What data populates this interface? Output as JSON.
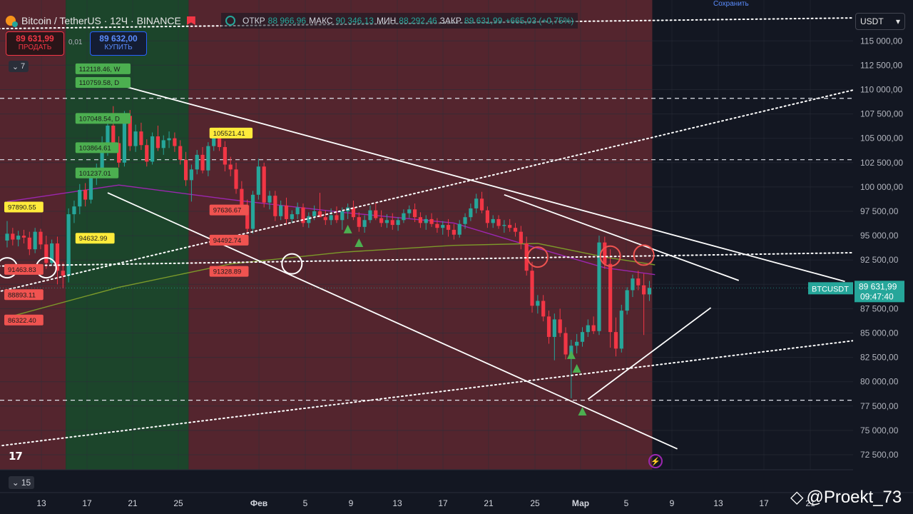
{
  "header": {
    "symbol_title": "Bitcoin / TetherUS · 12Ч · BINANCE",
    "ohlc": [
      {
        "label": "ОТКР",
        "value": "88 966,96"
      },
      {
        "label": "МАКС",
        "value": "90 346,13"
      },
      {
        "label": "МИН",
        "value": "88 292,46"
      },
      {
        "label": "ЗАКР",
        "value": "89 631,99"
      },
      {
        "label": "",
        "value": "+665,03 (+0,75%)"
      }
    ],
    "top_edge_text": "Сохранить"
  },
  "trade": {
    "sell_price": "89 631,99",
    "sell_label": "ПРОДАТЬ",
    "spread": "0,01",
    "buy_price": "89 632,00",
    "buy_label": "КУПИТЬ"
  },
  "indicators_count": "7",
  "currency_select": "USDT",
  "interval_count": "15",
  "watermark": "@Proekt_73",
  "colors": {
    "background": "#131722",
    "up": "#26a69a",
    "down": "#f23645",
    "bear_zone": "#5c2730",
    "bull_zone": "#1e4a2c",
    "ma_short": "#9c27b0",
    "ma_long": "#7c9a2a",
    "label_green": "#4caf50",
    "label_yellow": "#ffeb3b",
    "label_red": "#f05350"
  },
  "chart_data": {
    "type": "candlestick",
    "title": "Bitcoin / TetherUS · 12Ч · BINANCE",
    "timeframe": "12Ч",
    "ylim": [
      71000,
      117000
    ],
    "y_ticks": [
      72500,
      75000,
      77500,
      80000,
      82500,
      85000,
      87500,
      90000,
      92500,
      95000,
      97500,
      100000,
      102500,
      105000,
      107500,
      110000,
      112500,
      115000
    ],
    "y_tick_labels": [
      "72 500,00",
      "75 000,00",
      "77 500,00",
      "80 000,00",
      "82 500,00",
      "85 000,00",
      "87 500,00",
      "90 000,00",
      "92 500,00",
      "95 000,00",
      "97 500,00",
      "100 000,00",
      "102 500,00",
      "105 000,00",
      "107 500,00",
      "110 000,00",
      "112 500,00",
      "115 000,00"
    ],
    "x_labels": [
      "13",
      "17",
      "21",
      "25",
      "Фев",
      "5",
      "9",
      "13",
      "17",
      "21",
      "25",
      "Мар",
      "5",
      "9",
      "13",
      "17",
      "21"
    ],
    "last_price": 89631.99,
    "last_price_label": "89 631,99",
    "symbol_tag": "BTCUSDT",
    "countdown": "09:47:40",
    "candles": [
      [
        94500,
        96500,
        93800,
        95200
      ],
      [
        95200,
        95800,
        94000,
        94600
      ],
      [
        94600,
        95500,
        93900,
        95000
      ],
      [
        95000,
        95600,
        94200,
        94800
      ],
      [
        94800,
        95400,
        93000,
        93600
      ],
      [
        93600,
        95800,
        93200,
        95400
      ],
      [
        95400,
        95700,
        93600,
        94100
      ],
      [
        94100,
        95000,
        91600,
        92200
      ],
      [
        92200,
        94600,
        91900,
        94200
      ],
      [
        94200,
        94900,
        90000,
        91400
      ],
      [
        91400,
        92200,
        89600,
        90900
      ],
      [
        90900,
        97800,
        90200,
        97200
      ],
      [
        97200,
        98600,
        96300,
        98000
      ],
      [
        98000,
        100300,
        97200,
        99700
      ],
      [
        99700,
        100400,
        98000,
        98700
      ],
      [
        98700,
        101800,
        98300,
        101300
      ],
      [
        101300,
        102400,
        100200,
        101800
      ],
      [
        101800,
        105200,
        101300,
        104200
      ],
      [
        104200,
        107000,
        103200,
        106300
      ],
      [
        106300,
        108300,
        104000,
        104500
      ],
      [
        104500,
        105200,
        102000,
        102500
      ],
      [
        102500,
        107800,
        102100,
        107300
      ],
      [
        107300,
        107900,
        103700,
        104200
      ],
      [
        104200,
        106400,
        103600,
        105700
      ],
      [
        105700,
        106600,
        103800,
        104300
      ],
      [
        104300,
        104900,
        102100,
        102600
      ],
      [
        102600,
        105600,
        102300,
        105200
      ],
      [
        105200,
        106300,
        103700,
        104000
      ],
      [
        104000,
        105300,
        103300,
        104800
      ],
      [
        104800,
        105700,
        104000,
        105000
      ],
      [
        105000,
        105600,
        103600,
        104200
      ],
      [
        104200,
        104800,
        102300,
        102800
      ],
      [
        102800,
        103600,
        100100,
        100700
      ],
      [
        100700,
        102300,
        98500,
        101800
      ],
      [
        101800,
        103800,
        101300,
        103300
      ],
      [
        103300,
        104100,
        101400,
        101700
      ],
      [
        101700,
        104600,
        101100,
        104200
      ],
      [
        104200,
        105900,
        103700,
        105300
      ],
      [
        105300,
        106100,
        103700,
        104100
      ],
      [
        104100,
        104700,
        101600,
        102300
      ],
      [
        102300,
        103100,
        101100,
        101800
      ],
      [
        101800,
        102500,
        99300,
        99800
      ],
      [
        99800,
        100600,
        97600,
        98100
      ],
      [
        98100,
        98700,
        95200,
        95700
      ],
      [
        95700,
        99600,
        95200,
        99200
      ],
      [
        99200,
        102900,
        98700,
        102100
      ],
      [
        102100,
        102500,
        97900,
        98400
      ],
      [
        98400,
        99600,
        97700,
        99100
      ],
      [
        99100,
        99600,
        96500,
        97000
      ],
      [
        97000,
        98600,
        96600,
        98100
      ],
      [
        98100,
        98900,
        96100,
        96700
      ],
      [
        96700,
        97600,
        96300,
        97200
      ],
      [
        97200,
        98400,
        96700,
        97900
      ],
      [
        97900,
        98300,
        95900,
        96300
      ],
      [
        96300,
        97400,
        95800,
        97000
      ],
      [
        97000,
        98100,
        96600,
        97500
      ],
      [
        97500,
        99400,
        96900,
        96900
      ],
      [
        96900,
        97600,
        96100,
        96600
      ],
      [
        96600,
        97800,
        96100,
        97100
      ],
      [
        97100,
        98000,
        96300,
        96600
      ],
      [
        96600,
        97900,
        95600,
        97500
      ],
      [
        97500,
        98300,
        96700,
        97900
      ],
      [
        97900,
        98600,
        96600,
        96900
      ],
      [
        96900,
        97400,
        95400,
        95900
      ],
      [
        95900,
        97100,
        95300,
        96600
      ],
      [
        96600,
        98100,
        96300,
        97600
      ],
      [
        97600,
        98400,
        96600,
        96800
      ],
      [
        96800,
        97600,
        95900,
        96300
      ],
      [
        96300,
        97200,
        95800,
        96600
      ],
      [
        96600,
        97300,
        95600,
        96100
      ],
      [
        96100,
        96900,
        95500,
        96600
      ],
      [
        96600,
        97700,
        96300,
        97300
      ],
      [
        97300,
        98100,
        96800,
        97700
      ],
      [
        97700,
        98300,
        96400,
        96900
      ],
      [
        96900,
        97400,
        95800,
        96300
      ],
      [
        96300,
        97100,
        95600,
        96700
      ],
      [
        96700,
        97300,
        95900,
        96200
      ],
      [
        96200,
        96800,
        95300,
        95800
      ],
      [
        95800,
        96500,
        95100,
        96100
      ],
      [
        96100,
        96700,
        94900,
        95600
      ],
      [
        95600,
        96200,
        94600,
        95100
      ],
      [
        95100,
        96600,
        94800,
        96200
      ],
      [
        96200,
        97300,
        95700,
        96900
      ],
      [
        96900,
        98300,
        96500,
        97800
      ],
      [
        97800,
        99300,
        97300,
        98800
      ],
      [
        98800,
        99500,
        97300,
        97600
      ],
      [
        97600,
        98000,
        95800,
        96300
      ],
      [
        96300,
        97100,
        95800,
        96700
      ],
      [
        96700,
        97100,
        95700,
        96000
      ],
      [
        96000,
        96600,
        95300,
        96100
      ],
      [
        96100,
        96700,
        95400,
        95800
      ],
      [
        95800,
        96300,
        94900,
        95400
      ],
      [
        95400,
        96000,
        93600,
        94200
      ],
      [
        94200,
        94900,
        90900,
        91400
      ],
      [
        91400,
        92300,
        87100,
        87800
      ],
      [
        87800,
        88900,
        87000,
        88300
      ],
      [
        88300,
        88900,
        86200,
        86700
      ],
      [
        86700,
        87300,
        83900,
        84600
      ],
      [
        84600,
        87000,
        82200,
        86400
      ],
      [
        86400,
        87500,
        84600,
        85000
      ],
      [
        85000,
        85600,
        82300,
        82800
      ],
      [
        82800,
        84300,
        78300,
        83700
      ],
      [
        83700,
        84900,
        82900,
        84100
      ],
      [
        84100,
        85600,
        83600,
        85100
      ],
      [
        85100,
        86400,
        84600,
        85800
      ],
      [
        85800,
        86700,
        84900,
        85200
      ],
      [
        85200,
        95000,
        84800,
        94300
      ],
      [
        94300,
        94900,
        91600,
        92100
      ],
      [
        92100,
        93600,
        83500,
        85100
      ],
      [
        85100,
        86600,
        82600,
        83400
      ],
      [
        83400,
        87900,
        83000,
        87300
      ],
      [
        87300,
        89700,
        86900,
        89400
      ],
      [
        89400,
        91000,
        88700,
        90600
      ],
      [
        90600,
        91400,
        89400,
        89900
      ],
      [
        89900,
        91100,
        84800,
        88966
      ],
      [
        88966,
        90346,
        88292,
        89631
      ]
    ],
    "ma_short": [
      [
        0,
        98500
      ],
      [
        20,
        100200
      ],
      [
        40,
        98700
      ],
      [
        60,
        97400
      ],
      [
        80,
        96300
      ],
      [
        95,
        93700
      ],
      [
        107,
        91700
      ],
      [
        116,
        91000
      ]
    ],
    "ma_long": [
      [
        0,
        86600
      ],
      [
        20,
        89700
      ],
      [
        40,
        92100
      ],
      [
        60,
        93300
      ],
      [
        80,
        94000
      ],
      [
        95,
        94200
      ],
      [
        107,
        92800
      ],
      [
        116,
        92000
      ]
    ],
    "trendlines": [
      {
        "p1": [
          18,
          110800
        ],
        "p2": [
          150,
          90300
        ],
        "style": "solid"
      },
      {
        "p1": [
          18,
          99400
        ],
        "p2": [
          120,
          73100
        ],
        "style": "solid"
      },
      {
        "p1": [
          89,
          99200
        ],
        "p2": [
          131,
          90400
        ],
        "style": "solid"
      },
      {
        "p1": [
          104,
          78200
        ],
        "p2": [
          126,
          87600
        ],
        "style": "solid"
      },
      {
        "p1": [
          -10,
          72800
        ],
        "p2": [
          157,
          84600
        ],
        "style": "dotted"
      },
      {
        "p1": [
          -10,
          88100
        ],
        "p2": [
          157,
          110700
        ],
        "style": "dotted"
      },
      {
        "p1": [
          -10,
          91800
        ],
        "p2": [
          157,
          93300
        ],
        "style": "dotted"
      },
      {
        "p1": [
          -10,
          116200
        ],
        "p2": [
          157,
          117400
        ],
        "style": "dotted"
      }
    ],
    "horizontal_levels": [
      109100,
      102800,
      78100
    ],
    "zones": [
      {
        "from": 0,
        "to": 11,
        "type": "bear"
      },
      {
        "from": 11,
        "to": 33,
        "type": "bull"
      },
      {
        "from": 33,
        "to": 116,
        "type": "bear"
      }
    ],
    "circles": [
      {
        "candle": 0,
        "price": 91700,
        "color": "white"
      },
      {
        "candle": 7,
        "price": 91700,
        "color": "white"
      },
      {
        "candle": 51,
        "price": 92100,
        "color": "white"
      },
      {
        "candle": 95,
        "price": 92800,
        "color": "red"
      },
      {
        "candle": 108,
        "price": 92900,
        "color": "red"
      },
      {
        "candle": 114,
        "price": 93000,
        "color": "red"
      }
    ],
    "triangles": [
      {
        "candle": 61,
        "price": 95600
      },
      {
        "candle": 63,
        "price": 94200
      },
      {
        "candle": 101,
        "price": 82700
      },
      {
        "candle": 102,
        "price": 81300
      },
      {
        "candle": 103,
        "price": 76900
      }
    ],
    "level_labels": [
      {
        "text": "112118.46, W",
        "price": 112100,
        "candle": 13,
        "color": "green"
      },
      {
        "text": "110759.58, D",
        "price": 110700,
        "candle": 13,
        "color": "green"
      },
      {
        "text": "107048.54, D",
        "price": 107000,
        "candle": 13,
        "color": "green"
      },
      {
        "text": "103864.61",
        "price": 104000,
        "candle": 13,
        "color": "green"
      },
      {
        "text": "101237.01",
        "price": 101400,
        "candle": 13,
        "color": "green"
      },
      {
        "text": "94632.99",
        "price": 94700,
        "candle": 13,
        "color": "yellow"
      },
      {
        "text": "97890.55",
        "price": 97900,
        "candle": 0,
        "color": "yellow"
      },
      {
        "text": "91463.83",
        "price": 91500,
        "candle": 0,
        "color": "red"
      },
      {
        "text": "88893.11",
        "price": 88900,
        "candle": 0,
        "color": "red"
      },
      {
        "text": "86322.40",
        "price": 86300,
        "candle": 0,
        "color": "red"
      },
      {
        "text": "105521.41",
        "price": 105500,
        "candle": 37,
        "color": "yellow"
      },
      {
        "text": "97636.67",
        "price": 97600,
        "candle": 37,
        "color": "red"
      },
      {
        "text": "94492.74",
        "price": 94500,
        "candle": 37,
        "color": "red"
      },
      {
        "text": "91328.89",
        "price": 91300,
        "candle": 37,
        "color": "red"
      }
    ],
    "grid": true,
    "legend": "top-left"
  }
}
